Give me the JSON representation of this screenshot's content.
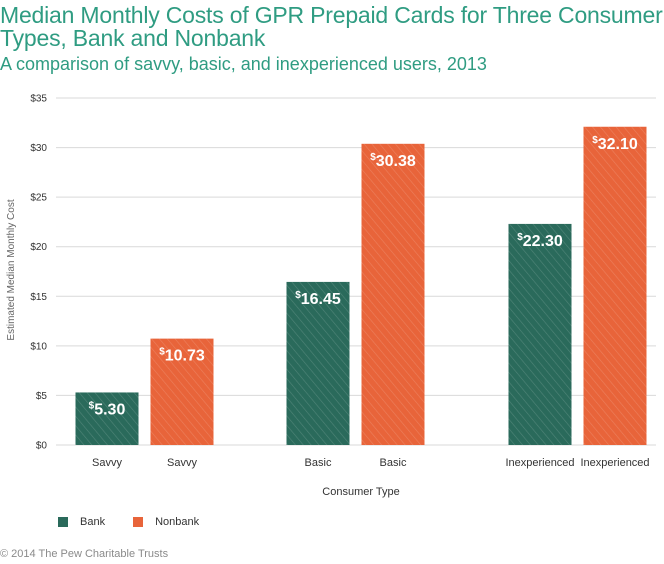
{
  "title": "Median Monthly Costs of GPR Prepaid Cards for Three Consumer Types, Bank and Nonbank",
  "subtitle": "A comparison of savvy, basic, and inexperienced users, 2013",
  "footer": "© 2014 The Pew Charitable Trusts",
  "colors": {
    "bank": "#2a6a5b",
    "nonbank": "#e8643a",
    "grid": "#d9d9d9",
    "axis_text": "#333333"
  },
  "chart_data": {
    "type": "bar",
    "xlabel": "Consumer Type",
    "ylabel": "Estimated Median Monthly Cost",
    "ylim": [
      0,
      35
    ],
    "yticks": [
      0,
      5,
      10,
      15,
      20,
      25,
      30,
      35
    ],
    "ytick_labels": [
      "$0",
      "$5",
      "$10",
      "$15",
      "$20",
      "$25",
      "$30",
      "$35"
    ],
    "legend": [
      "Bank",
      "Nonbank"
    ],
    "bars": [
      {
        "category": "Savvy",
        "series": "Bank",
        "value": 5.3,
        "label": "5.30"
      },
      {
        "category": "Savvy",
        "series": "Nonbank",
        "value": 10.73,
        "label": "10.73"
      },
      {
        "category": "Basic",
        "series": "Bank",
        "value": 16.45,
        "label": "16.45"
      },
      {
        "category": "Basic",
        "series": "Nonbank",
        "value": 30.38,
        "label": "30.38"
      },
      {
        "category": "Inexperienced",
        "series": "Bank",
        "value": 22.3,
        "label": "22.30"
      },
      {
        "category": "Inexperienced",
        "series": "Nonbank",
        "value": 32.1,
        "label": "32.10"
      }
    ],
    "currency_symbol": "$",
    "grid": true,
    "legend_position": "bottom-left"
  }
}
